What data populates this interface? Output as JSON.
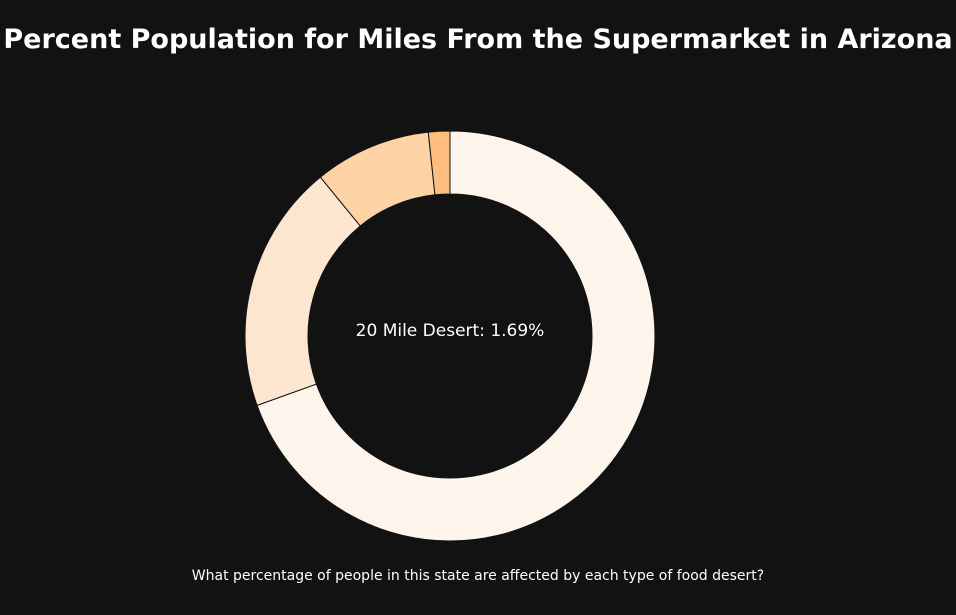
{
  "chart_data": {
    "type": "pie",
    "variant": "donut",
    "title": "Percent Population for Miles From the Supermarket in Arizona",
    "slices": [
      {
        "value": 69.5,
        "color": "#fdf5ec"
      },
      {
        "value": 19.6,
        "color": "#fde6cf"
      },
      {
        "value": 9.2,
        "color": "#fdd2a4"
      },
      {
        "value": 1.69,
        "color": "#fdbd7f"
      }
    ],
    "center_label": "20 Mile Desert: 1.69%",
    "caption": "What percentage of people in this state are affected by each type of food desert?",
    "background_color": "#121212",
    "stroke_color": "#121212"
  }
}
